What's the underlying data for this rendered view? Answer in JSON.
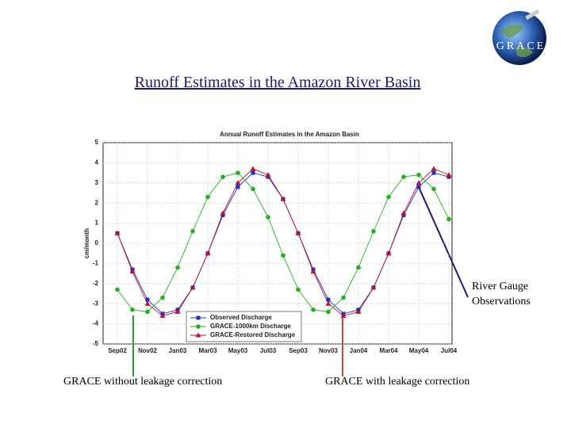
{
  "logo": "GRACE",
  "slide": {
    "title": "Runoff Estimates in the Amazon River Basin",
    "annotations": [
      [
        "River Gauge",
        "Observations"
      ],
      "GRACE without leakage correction",
      "GRACE with leakage correction"
    ]
  },
  "chart_data": {
    "type": "line",
    "title": "Annual Runoff Estimates in the Amazon Basin",
    "y_label": "cm/month",
    "categories": [
      "Sep02",
      null,
      "Nov02",
      null,
      "Jan03",
      null,
      "Mar03",
      null,
      "May03",
      null,
      "Jul03",
      null,
      "Sep03",
      null,
      "Nov03",
      null,
      "Jan04",
      null,
      "Mar04",
      null,
      "May04",
      null,
      "Jul04"
    ],
    "ylim": [
      -5,
      5
    ],
    "yticks": [
      -5,
      -4,
      -3,
      -2,
      -1,
      0,
      1,
      2,
      3,
      4,
      5
    ],
    "grid": true,
    "legend": "lower left",
    "series": [
      {
        "name": "Observed Discharge",
        "color": "#1f2fbf",
        "marker": "square",
        "values": [
          0.5,
          -1.3,
          -2.8,
          -3.5,
          -3.3,
          -2.2,
          -0.5,
          1.4,
          2.8,
          3.5,
          3.3,
          2.2,
          0.5,
          -1.3,
          -2.8,
          -3.5,
          -3.3,
          -2.2,
          -0.5,
          1.4,
          2.8,
          3.5,
          3.3
        ]
      },
      {
        "name": "GRACE-1000km Discharge",
        "color": "#22b022",
        "marker": "circle",
        "values": [
          -2.3,
          -3.3,
          -3.4,
          -2.7,
          -1.2,
          0.6,
          2.3,
          3.3,
          3.5,
          2.7,
          1.3,
          -0.6,
          -2.3,
          -3.3,
          -3.4,
          -2.7,
          -1.2,
          0.6,
          2.3,
          3.3,
          3.4,
          2.7,
          1.2
        ]
      },
      {
        "name": "GRACE-Restored Discharge",
        "color": "#c0102a",
        "marker": "triangle",
        "values": [
          0.5,
          -1.4,
          -3.0,
          -3.6,
          -3.4,
          -2.2,
          -0.5,
          1.5,
          3.0,
          3.7,
          3.4,
          2.2,
          0.5,
          -1.4,
          -3.0,
          -3.6,
          -3.4,
          -2.2,
          -0.5,
          1.5,
          3.0,
          3.7,
          3.4
        ]
      }
    ]
  }
}
